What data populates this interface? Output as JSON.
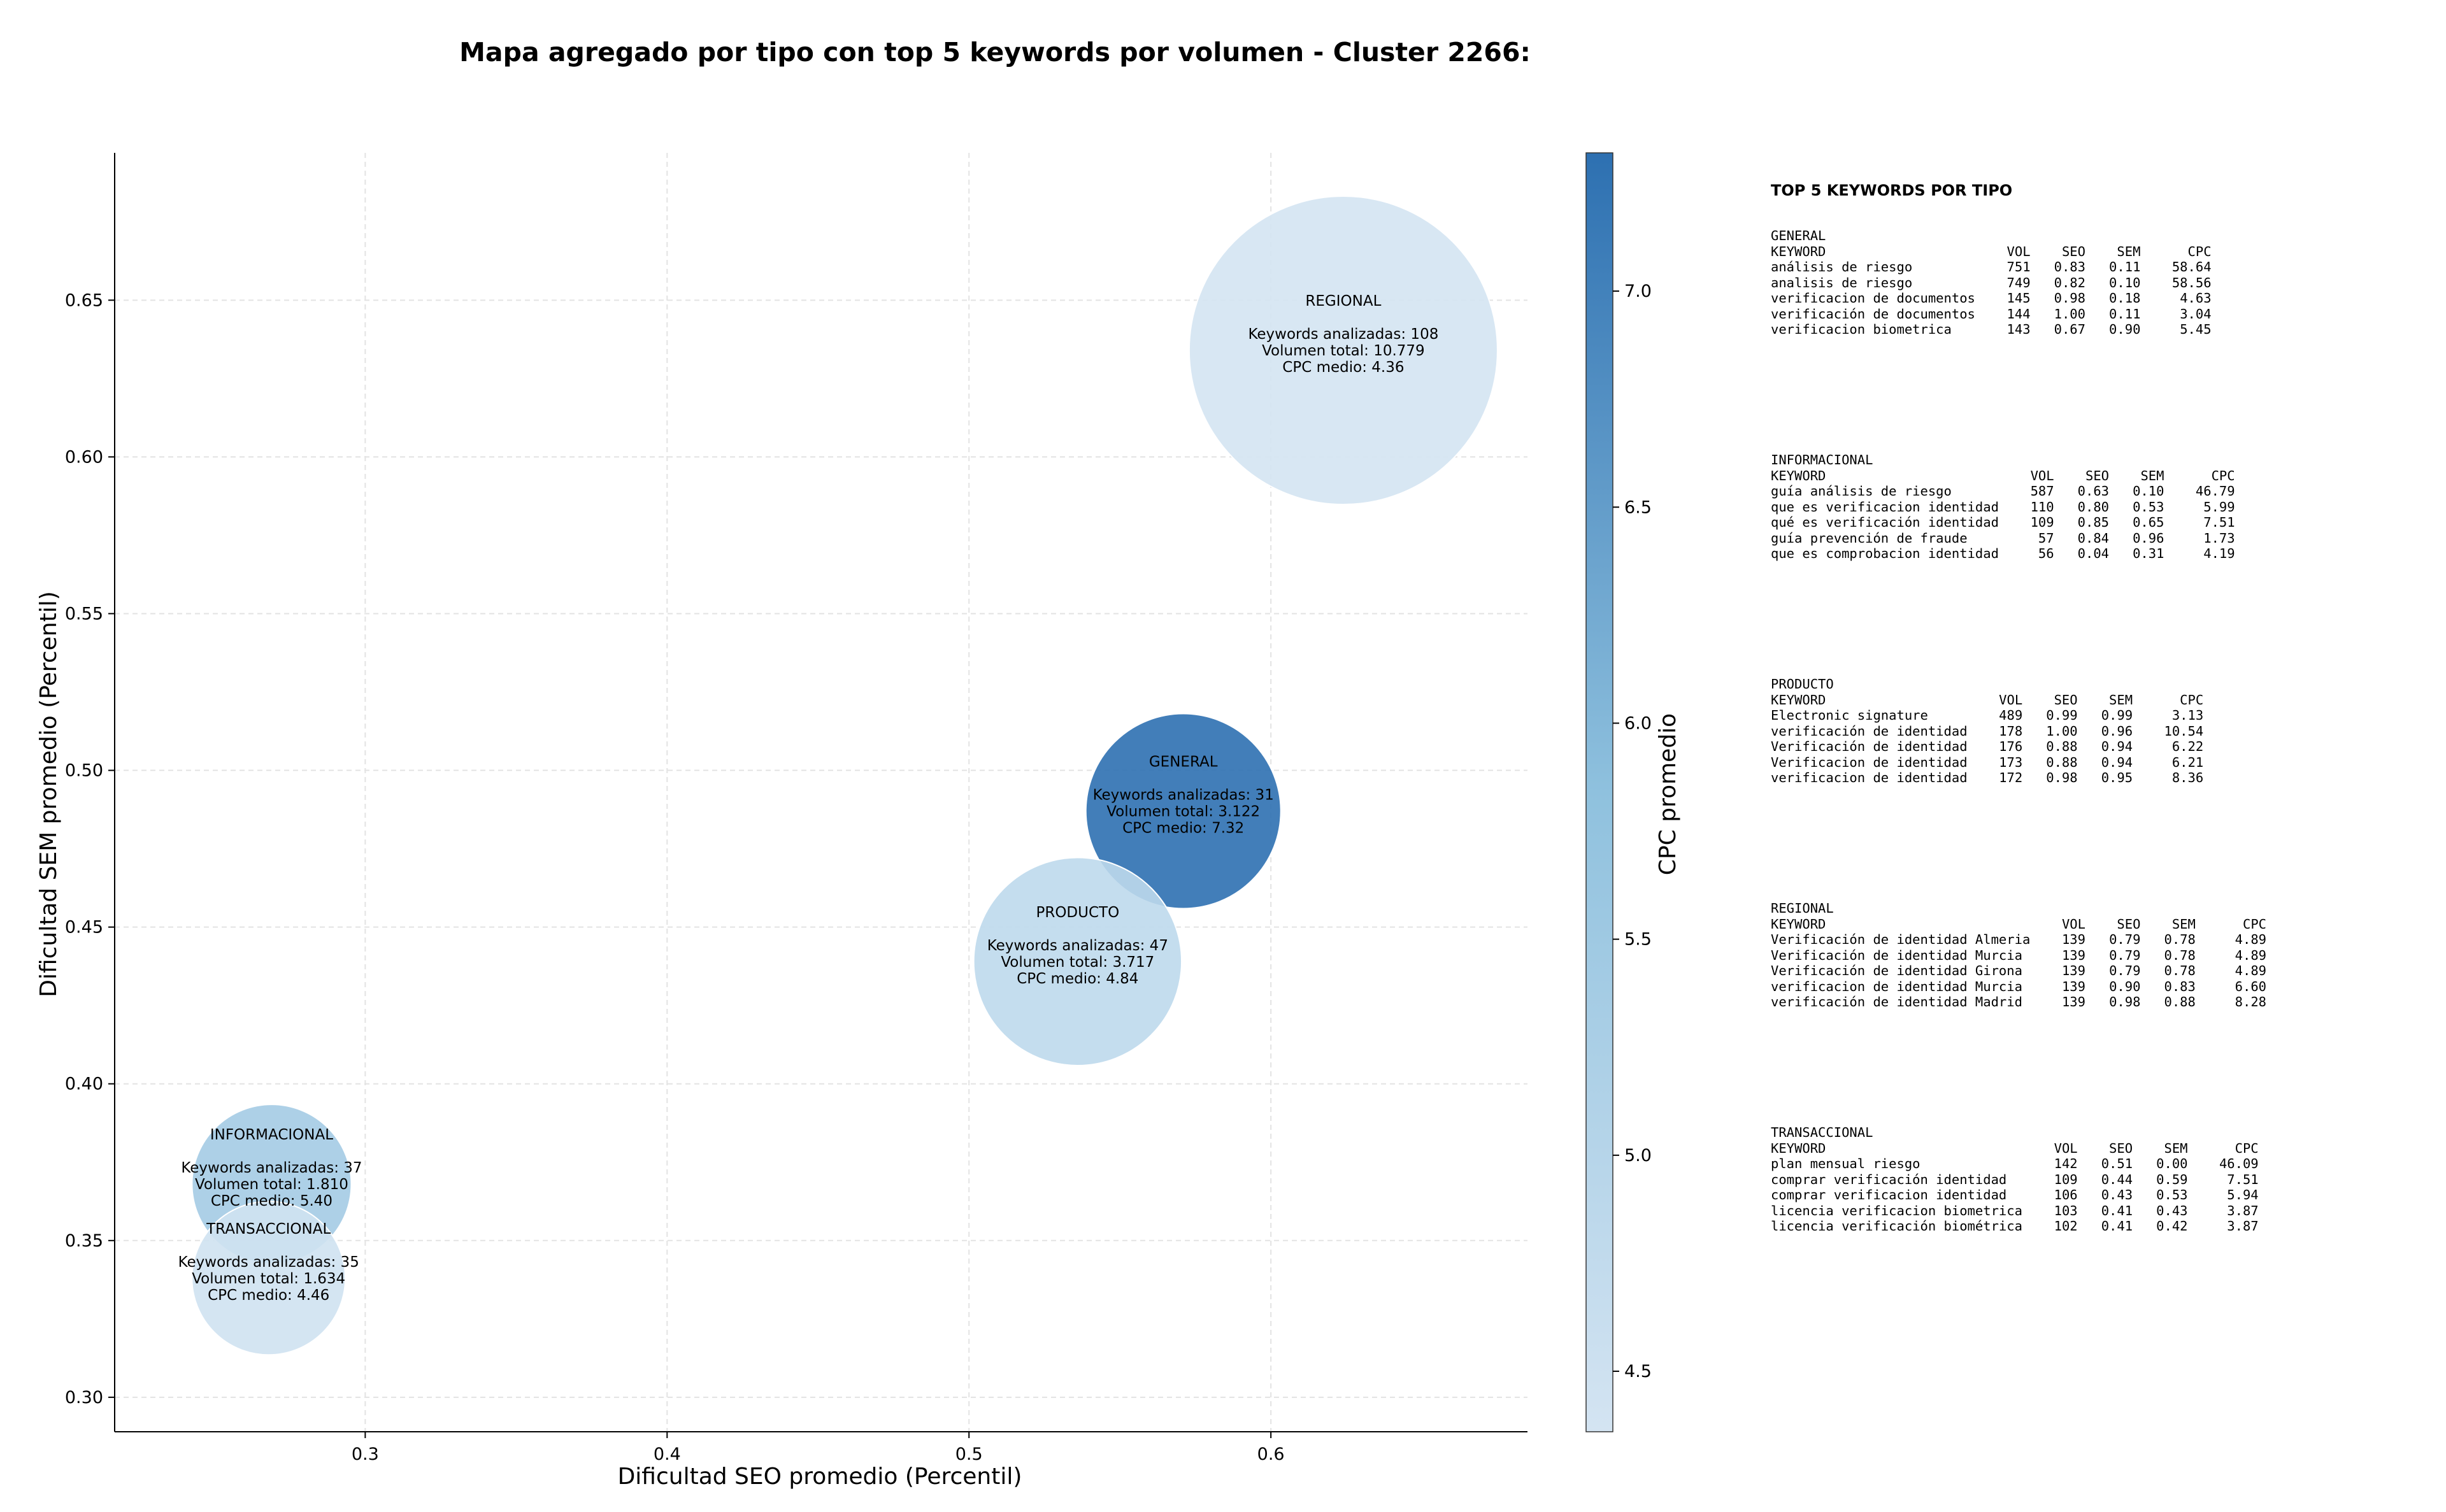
{
  "chart_data": {
    "type": "scatter",
    "title": "Mapa agregado por tipo con top 5 keywords por volumen - Cluster 2266:",
    "xlabel": "Dificultad SEO promedio (Percentil)",
    "ylabel": "Dificultad SEM promedio (Percentil)",
    "xlim": [
      0.217,
      0.685
    ],
    "ylim": [
      0.289,
      0.697
    ],
    "xticks": [
      "0.3",
      "0.4",
      "0.5",
      "0.6"
    ],
    "yticks": [
      "0.30",
      "0.35",
      "0.40",
      "0.45",
      "0.50",
      "0.55",
      "0.60",
      "0.65"
    ],
    "grid": true,
    "bubble_size_encodes": "Volumen total",
    "colorbar": {
      "label": "CPC promedio",
      "range": [
        4.36,
        7.32
      ],
      "ticks": [
        "4.5",
        "5.0",
        "5.5",
        "6.0",
        "6.5",
        "7.0"
      ],
      "colors": [
        "#d4e4f2",
        "#6baed6",
        "#2d70b1"
      ]
    },
    "points": [
      {
        "name": "REGIONAL",
        "x": 0.624,
        "y": 0.634,
        "keywords_line": "Keywords analizadas: 108",
        "volume_line": "Volumen total: 10.779",
        "cpc_line": "CPC medio: 4.36",
        "keywords": 108,
        "volume": 10779,
        "cpc": 4.36
      },
      {
        "name": "GENERAL",
        "x": 0.571,
        "y": 0.487,
        "keywords_line": "Keywords analizadas: 31",
        "volume_line": "Volumen total: 3.122",
        "cpc_line": "CPC medio: 7.32",
        "keywords": 31,
        "volume": 3122,
        "cpc": 7.32
      },
      {
        "name": "PRODUCTO",
        "x": 0.536,
        "y": 0.439,
        "keywords_line": "Keywords analizadas: 47",
        "volume_line": "Volumen total: 3.717",
        "cpc_line": "CPC medio: 4.84",
        "keywords": 47,
        "volume": 3717,
        "cpc": 4.84
      },
      {
        "name": "INFORMACIONAL",
        "x": 0.269,
        "y": 0.368,
        "keywords_line": "Keywords analizadas: 37",
        "volume_line": "Volumen total: 1.810",
        "cpc_line": "CPC medio: 5.40",
        "keywords": 37,
        "volume": 1810,
        "cpc": 5.4
      },
      {
        "name": "TRANSACCIONAL",
        "x": 0.268,
        "y": 0.338,
        "keywords_line": "Keywords analizadas: 35",
        "volume_line": "Volumen total: 1.634",
        "cpc_line": "CPC medio: 4.46",
        "keywords": 35,
        "volume": 1634,
        "cpc": 4.46
      }
    ]
  },
  "top_keywords": {
    "title": "TOP 5 KEYWORDS POR TIPO",
    "header": {
      "keyword": "KEYWORD",
      "vol": "VOL",
      "seo": "SEO",
      "sem": "SEM",
      "cpc": "CPC"
    },
    "groups": [
      {
        "name": "GENERAL",
        "rows": [
          {
            "keyword": "análisis de riesgo",
            "vol": "751",
            "seo": "0.83",
            "sem": "0.11",
            "cpc": "58.64"
          },
          {
            "keyword": "analisis de riesgo",
            "vol": "749",
            "seo": "0.82",
            "sem": "0.10",
            "cpc": "58.56"
          },
          {
            "keyword": "verificacion de documentos",
            "vol": "145",
            "seo": "0.98",
            "sem": "0.18",
            "cpc": "4.63"
          },
          {
            "keyword": "verificación de documentos",
            "vol": "144",
            "seo": "1.00",
            "sem": "0.11",
            "cpc": "3.04"
          },
          {
            "keyword": "verificacion biometrica",
            "vol": "143",
            "seo": "0.67",
            "sem": "0.90",
            "cpc": "5.45"
          }
        ]
      },
      {
        "name": "INFORMACIONAL",
        "rows": [
          {
            "keyword": "guía análisis de riesgo",
            "vol": "587",
            "seo": "0.63",
            "sem": "0.10",
            "cpc": "46.79"
          },
          {
            "keyword": "que es verificacion identidad",
            "vol": "110",
            "seo": "0.80",
            "sem": "0.53",
            "cpc": "5.99"
          },
          {
            "keyword": "qué es verificación identidad",
            "vol": "109",
            "seo": "0.85",
            "sem": "0.65",
            "cpc": "7.51"
          },
          {
            "keyword": "guía prevención de fraude",
            "vol": "57",
            "seo": "0.84",
            "sem": "0.96",
            "cpc": "1.73"
          },
          {
            "keyword": "que es comprobacion identidad",
            "vol": "56",
            "seo": "0.04",
            "sem": "0.31",
            "cpc": "4.19"
          }
        ]
      },
      {
        "name": "PRODUCTO",
        "rows": [
          {
            "keyword": "Electronic signature",
            "vol": "489",
            "seo": "0.99",
            "sem": "0.99",
            "cpc": "3.13"
          },
          {
            "keyword": "verificación de identidad",
            "vol": "178",
            "seo": "1.00",
            "sem": "0.96",
            "cpc": "10.54"
          },
          {
            "keyword": "Verificación de identidad",
            "vol": "176",
            "seo": "0.88",
            "sem": "0.94",
            "cpc": "6.22"
          },
          {
            "keyword": "Verificacion de identidad",
            "vol": "173",
            "seo": "0.88",
            "sem": "0.94",
            "cpc": "6.21"
          },
          {
            "keyword": "verificacion de identidad",
            "vol": "172",
            "seo": "0.98",
            "sem": "0.95",
            "cpc": "8.36"
          }
        ]
      },
      {
        "name": "REGIONAL",
        "rows": [
          {
            "keyword": "Verificación de identidad Almeria",
            "vol": "139",
            "seo": "0.79",
            "sem": "0.78",
            "cpc": "4.89"
          },
          {
            "keyword": "Verificación de identidad Murcia",
            "vol": "139",
            "seo": "0.79",
            "sem": "0.78",
            "cpc": "4.89"
          },
          {
            "keyword": "Verificación de identidad Girona",
            "vol": "139",
            "seo": "0.79",
            "sem": "0.78",
            "cpc": "4.89"
          },
          {
            "keyword": "verificacion de identidad Murcia",
            "vol": "139",
            "seo": "0.90",
            "sem": "0.83",
            "cpc": "6.60"
          },
          {
            "keyword": "verificación de identidad Madrid",
            "vol": "139",
            "seo": "0.98",
            "sem": "0.88",
            "cpc": "8.28"
          }
        ]
      },
      {
        "name": "TRANSACCIONAL",
        "rows": [
          {
            "keyword": "plan mensual riesgo",
            "vol": "142",
            "seo": "0.51",
            "sem": "0.00",
            "cpc": "46.09"
          },
          {
            "keyword": "comprar verificación identidad",
            "vol": "109",
            "seo": "0.44",
            "sem": "0.59",
            "cpc": "7.51"
          },
          {
            "keyword": "comprar verificacion identidad",
            "vol": "106",
            "seo": "0.43",
            "sem": "0.53",
            "cpc": "5.94"
          },
          {
            "keyword": "licencia verificacion biometrica",
            "vol": "103",
            "seo": "0.41",
            "sem": "0.43",
            "cpc": "3.87"
          },
          {
            "keyword": "licencia verificación biométrica",
            "vol": "102",
            "seo": "0.41",
            "sem": "0.42",
            "cpc": "3.87"
          }
        ]
      }
    ]
  }
}
